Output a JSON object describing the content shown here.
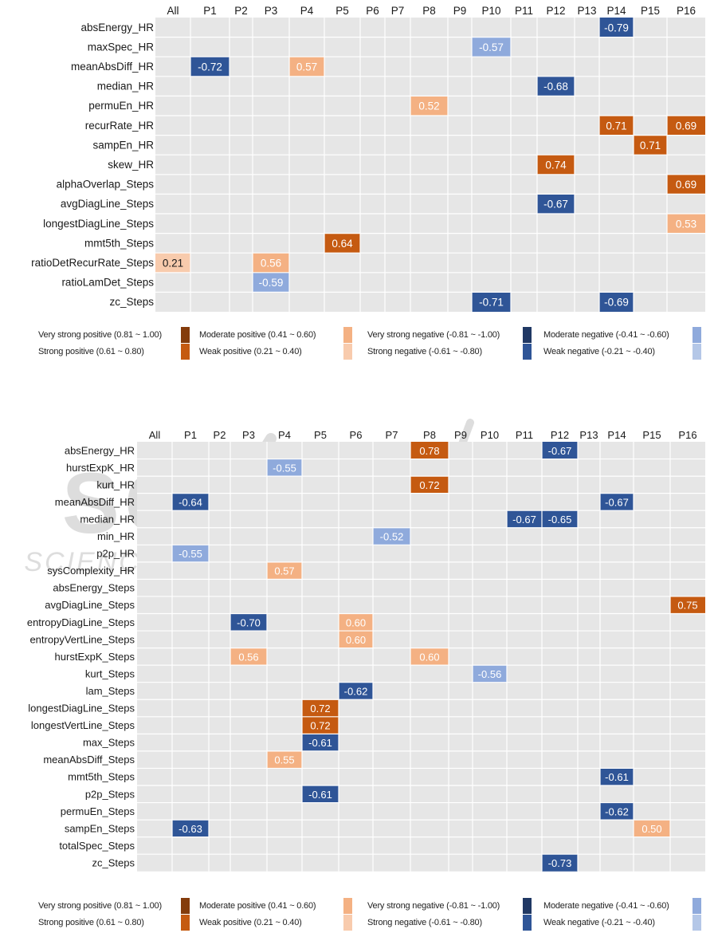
{
  "chart_data": [
    {
      "type": "heatmap",
      "title": "",
      "columns": [
        "All",
        "P1",
        "P2",
        "P3",
        "P4",
        "P5",
        "P6",
        "P7",
        "P8",
        "P9",
        "P10",
        "P11",
        "P12",
        "P13",
        "P14",
        "P15",
        "P16"
      ],
      "rows": [
        "absEnergy_HR",
        "maxSpec_HR",
        "meanAbsDiff_HR",
        "median_HR",
        "permuEn_HR",
        "recurRate_HR",
        "sampEn_HR",
        "skew_HR",
        "alphaOverlap_Steps",
        "avgDiagLine_Steps",
        "longestDiagLine_Steps",
        "mmt5th_Steps",
        "ratioDetRecurRate_Steps",
        "ratioLamDet_Steps",
        "zc_Steps"
      ],
      "cells": [
        {
          "row": "absEnergy_HR",
          "col": "P14",
          "value": -0.79
        },
        {
          "row": "maxSpec_HR",
          "col": "P10",
          "value": -0.57
        },
        {
          "row": "meanAbsDiff_HR",
          "col": "P1",
          "value": -0.72
        },
        {
          "row": "meanAbsDiff_HR",
          "col": "P4",
          "value": 0.57
        },
        {
          "row": "median_HR",
          "col": "P12",
          "value": -0.68
        },
        {
          "row": "permuEn_HR",
          "col": "P8",
          "value": 0.52
        },
        {
          "row": "recurRate_HR",
          "col": "P14",
          "value": 0.71
        },
        {
          "row": "recurRate_HR",
          "col": "P16",
          "value": 0.69
        },
        {
          "row": "sampEn_HR",
          "col": "P15",
          "value": 0.71
        },
        {
          "row": "skew_HR",
          "col": "P12",
          "value": 0.74
        },
        {
          "row": "alphaOverlap_Steps",
          "col": "P16",
          "value": 0.69
        },
        {
          "row": "avgDiagLine_Steps",
          "col": "P12",
          "value": -0.67
        },
        {
          "row": "longestDiagLine_Steps",
          "col": "P16",
          "value": 0.53
        },
        {
          "row": "mmt5th_Steps",
          "col": "P5",
          "value": 0.64
        },
        {
          "row": "ratioDetRecurRate_Steps",
          "col": "All",
          "value": 0.21
        },
        {
          "row": "ratioDetRecurRate_Steps",
          "col": "P3",
          "value": 0.56
        },
        {
          "row": "ratioLamDet_Steps",
          "col": "P3",
          "value": -0.59
        },
        {
          "row": "zc_Steps",
          "col": "P10",
          "value": -0.71
        },
        {
          "row": "zc_Steps",
          "col": "P14",
          "value": -0.69
        }
      ],
      "labels": {
        "-0.79": "-0.79",
        "-0.57": "-0.57",
        "-0.72": "-0.72",
        "0.57": "0.57",
        "-0.68": "-0.68",
        "0.52": "0.52",
        "0.71": "0.71",
        "0.69": "0.69",
        "0.74": "0.74",
        "-0.67": "-0.67",
        "0.53": "0.53",
        "0.64": "0.64",
        "0.21": "0.21",
        "0.56": "0.56",
        "-0.59": "-0.59",
        "-0.71": "-0.71",
        "-0.69": "-0.69"
      },
      "legend_position": "bottom"
    },
    {
      "type": "heatmap",
      "title": "",
      "columns": [
        "All",
        "P1",
        "P2",
        "P3",
        "P4",
        "P5",
        "P6",
        "P7",
        "P8",
        "P9",
        "P10",
        "P11",
        "P12",
        "P13",
        "P14",
        "P15",
        "P16"
      ],
      "rows": [
        "absEnergy_HR",
        "hurstExpK_HR",
        "kurt_HR",
        "meanAbsDiff_HR",
        "median_HR",
        "min_HR",
        "p2p_HR",
        "sysComplexity_HR",
        "absEnergy_Steps",
        "avgDiagLine_Steps",
        "entropyDiagLine_Steps",
        "entropyVertLine_Steps",
        "hurstExpK_Steps",
        "kurt_Steps",
        "lam_Steps",
        "longestDiagLine_Steps",
        "longestVertLine_Steps",
        "max_Steps",
        "meanAbsDiff_Steps",
        "mmt5th_Steps",
        "p2p_Steps",
        "permuEn_Steps",
        "sampEn_Steps",
        "totalSpec_Steps",
        "zc_Steps"
      ],
      "cells": [
        {
          "row": "absEnergy_HR",
          "col": "P8",
          "value": 0.78
        },
        {
          "row": "absEnergy_HR",
          "col": "P12",
          "value": -0.67
        },
        {
          "row": "hurstExpK_HR",
          "col": "P4",
          "value": -0.55
        },
        {
          "row": "kurt_HR",
          "col": "P8",
          "value": 0.72
        },
        {
          "row": "meanAbsDiff_HR",
          "col": "P1",
          "value": -0.64
        },
        {
          "row": "meanAbsDiff_HR",
          "col": "P14",
          "value": -0.67
        },
        {
          "row": "median_HR",
          "col": "P11",
          "value": -0.67
        },
        {
          "row": "median_HR",
          "col": "P12",
          "value": -0.65
        },
        {
          "row": "min_HR",
          "col": "P7",
          "value": -0.52
        },
        {
          "row": "p2p_HR",
          "col": "P1",
          "value": -0.55
        },
        {
          "row": "sysComplexity_HR",
          "col": "P4",
          "value": 0.57
        },
        {
          "row": "avgDiagLine_Steps",
          "col": "P16",
          "value": 0.75
        },
        {
          "row": "entropyDiagLine_Steps",
          "col": "P3",
          "value": -0.7
        },
        {
          "row": "entropyDiagLine_Steps",
          "col": "P6",
          "value": 0.6
        },
        {
          "row": "entropyVertLine_Steps",
          "col": "P6",
          "value": 0.6
        },
        {
          "row": "hurstExpK_Steps",
          "col": "P3",
          "value": 0.56
        },
        {
          "row": "hurstExpK_Steps",
          "col": "P8",
          "value": 0.6
        },
        {
          "row": "kurt_Steps",
          "col": "P10",
          "value": -0.56
        },
        {
          "row": "lam_Steps",
          "col": "P6",
          "value": -0.62
        },
        {
          "row": "longestDiagLine_Steps",
          "col": "P5",
          "value": 0.72
        },
        {
          "row": "longestVertLine_Steps",
          "col": "P5",
          "value": 0.72
        },
        {
          "row": "max_Steps",
          "col": "P5",
          "value": -0.61
        },
        {
          "row": "meanAbsDiff_Steps",
          "col": "P4",
          "value": 0.55
        },
        {
          "row": "mmt5th_Steps",
          "col": "P14",
          "value": -0.61
        },
        {
          "row": "p2p_Steps",
          "col": "P5",
          "value": -0.61
        },
        {
          "row": "permuEn_Steps",
          "col": "P14",
          "value": -0.62
        },
        {
          "row": "sampEn_Steps",
          "col": "P1",
          "value": -0.63
        },
        {
          "row": "sampEn_Steps",
          "col": "P15",
          "value": 0.5
        },
        {
          "row": "zc_Steps",
          "col": "P12",
          "value": -0.73
        }
      ],
      "legend_position": "bottom"
    }
  ],
  "legend": {
    "items": [
      {
        "label": "Very strong positive (0.81 ~ 1.00)",
        "color": "#843c0c",
        "range": [
          0.81,
          1.0
        ]
      },
      {
        "label": "Strong positive (0.61 ~ 0.80)",
        "color": "#c55a11",
        "range": [
          0.61,
          0.8
        ]
      },
      {
        "label": "Moderate positive (0.41 ~ 0.60)",
        "color": "#f4b183",
        "range": [
          0.41,
          0.6
        ]
      },
      {
        "label": "Weak positive (0.21 ~ 0.40)",
        "color": "#f8cbad",
        "range": [
          0.21,
          0.4
        ]
      },
      {
        "label": "Very strong negative (-0.81 ~ -1.00)",
        "color": "#203864",
        "range": [
          -1.0,
          -0.81
        ]
      },
      {
        "label": "Strong negative (-0.61 ~ -0.80)",
        "color": "#2f5597",
        "range": [
          -0.8,
          -0.61
        ]
      },
      {
        "label": "Moderate negative (-0.41 ~ -0.60)",
        "color": "#8faadc",
        "range": [
          -0.6,
          -0.41
        ]
      },
      {
        "label": "Weak negative (-0.21 ~ -0.40)",
        "color": "#b4c7e7",
        "range": [
          -0.4,
          -0.21
        ]
      }
    ]
  },
  "colors": {
    "cell_background": "#e6e6e6",
    "grid_line": "#ffffff",
    "light_text": "#ffffff",
    "dark_text": "#1a1a1a"
  },
  "watermark": {
    "line1": "SCITEPRESS",
    "line2": "SCIENCE AND TECHNOLOGY PUBLICATIONS"
  }
}
